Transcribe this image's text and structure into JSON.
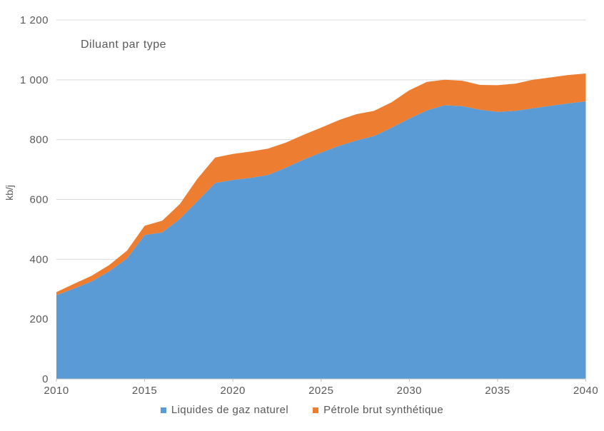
{
  "title": "Diluant par type",
  "y_axis_title": "kb/j",
  "colors": {
    "ngl_blue": "#5B9BD5",
    "sco_orange": "#ED7D31",
    "gridline": "#D9D9D9",
    "axis_line": "#BFBFBF",
    "text_gray": "#595959",
    "background": "#FFFFFF"
  },
  "chart_data": {
    "type": "area",
    "stacked": true,
    "title": "Diluant par type",
    "xlabel": "",
    "ylabel": "kb/j",
    "grid": true,
    "legend_position": "bottom",
    "ylim": [
      0,
      1200
    ],
    "yticks": [
      0,
      200,
      400,
      600,
      800,
      1000,
      1200
    ],
    "ytick_labels": [
      "0",
      "200",
      "400",
      "600",
      "800",
      "1 000",
      "1 200"
    ],
    "xticks": [
      2010,
      2015,
      2020,
      2025,
      2030,
      2035,
      2040
    ],
    "xtick_labels": [
      "2010",
      "2015",
      "2020",
      "2025",
      "2030",
      "2035",
      "2040"
    ],
    "x": [
      2010,
      2011,
      2012,
      2013,
      2014,
      2015,
      2016,
      2017,
      2018,
      2019,
      2020,
      2021,
      2022,
      2023,
      2024,
      2025,
      2026,
      2027,
      2028,
      2029,
      2030,
      2031,
      2032,
      2033,
      2034,
      2035,
      2036,
      2037,
      2038,
      2039,
      2040
    ],
    "series": [
      {
        "name": "Liquides de gaz naturel",
        "color": "#5B9BD5",
        "values": [
          280,
          302,
          326,
          360,
          403,
          481,
          490,
          535,
          595,
          655,
          665,
          672,
          682,
          706,
          733,
          757,
          779,
          797,
          812,
          840,
          870,
          898,
          915,
          912,
          900,
          893,
          896,
          905,
          913,
          921,
          928
        ]
      },
      {
        "name": "Pétrole brut synthétique",
        "color": "#ED7D31",
        "values": [
          10,
          16,
          19,
          21,
          26,
          31,
          39,
          50,
          75,
          85,
          87,
          88,
          88,
          84,
          83,
          83,
          86,
          88,
          84,
          85,
          95,
          95,
          85,
          85,
          83,
          89,
          91,
          95,
          95,
          95,
          93
        ]
      }
    ]
  },
  "legend": {
    "items": [
      {
        "label": "Liquides de gaz naturel",
        "color": "#5B9BD5"
      },
      {
        "label": "Pétrole brut synthétique",
        "color": "#ED7D31"
      }
    ]
  }
}
